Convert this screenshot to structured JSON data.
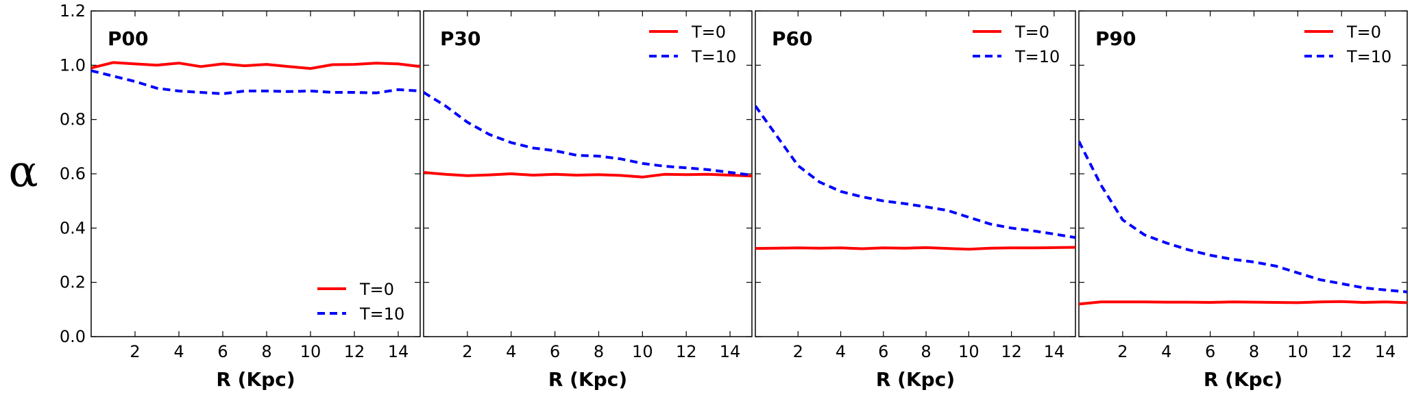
{
  "chart_data": [
    {
      "type": "line",
      "title": "P00",
      "xlabel": "R (Kpc)",
      "ylabel": "α",
      "xlim": [
        0,
        15
      ],
      "ylim": [
        0,
        1.2
      ],
      "xticks": [
        2,
        4,
        6,
        8,
        10,
        12,
        14
      ],
      "yticks": [
        0.0,
        0.2,
        0.4,
        0.6,
        0.8,
        1.0,
        1.2
      ],
      "show_ytick_labels": true,
      "legend_position": "bottom-right",
      "x": [
        0,
        1,
        2,
        3,
        4,
        5,
        6,
        7,
        8,
        9,
        10,
        11,
        12,
        13,
        14,
        15
      ],
      "series": [
        {
          "name": "T=0",
          "color": "#ff0000",
          "style": "solid",
          "values": [
            0.99,
            1.01,
            1.005,
            1.0,
            1.008,
            0.995,
            1.005,
            0.998,
            1.003,
            0.995,
            0.988,
            1.002,
            1.003,
            1.008,
            1.005,
            0.995
          ]
        },
        {
          "name": "T=10",
          "color": "#0000ff",
          "style": "dashed",
          "values": [
            0.98,
            0.96,
            0.94,
            0.915,
            0.905,
            0.9,
            0.895,
            0.905,
            0.905,
            0.903,
            0.905,
            0.9,
            0.9,
            0.898,
            0.91,
            0.905
          ]
        }
      ]
    },
    {
      "type": "line",
      "title": "P30",
      "xlabel": "R (Kpc)",
      "xlim": [
        0,
        15
      ],
      "ylim": [
        0,
        1.2
      ],
      "xticks": [
        2,
        4,
        6,
        8,
        10,
        12,
        14
      ],
      "yticks": [
        0.0,
        0.2,
        0.4,
        0.6,
        0.8,
        1.0,
        1.2
      ],
      "show_ytick_labels": false,
      "legend_position": "top-right",
      "x": [
        0,
        1,
        2,
        3,
        4,
        5,
        6,
        7,
        8,
        9,
        10,
        11,
        12,
        13,
        14,
        15
      ],
      "series": [
        {
          "name": "T=0",
          "color": "#ff0000",
          "style": "solid",
          "values": [
            0.605,
            0.598,
            0.593,
            0.596,
            0.6,
            0.595,
            0.598,
            0.595,
            0.597,
            0.594,
            0.588,
            0.598,
            0.597,
            0.598,
            0.595,
            0.592
          ]
        },
        {
          "name": "T=10",
          "color": "#0000ff",
          "style": "dashed",
          "values": [
            0.9,
            0.85,
            0.79,
            0.745,
            0.715,
            0.695,
            0.685,
            0.668,
            0.665,
            0.655,
            0.638,
            0.628,
            0.622,
            0.615,
            0.605,
            0.595
          ]
        }
      ]
    },
    {
      "type": "line",
      "title": "P60",
      "xlabel": "R (Kpc)",
      "xlim": [
        0,
        15
      ],
      "ylim": [
        0,
        1.2
      ],
      "xticks": [
        2,
        4,
        6,
        8,
        10,
        12,
        14
      ],
      "yticks": [
        0.0,
        0.2,
        0.4,
        0.6,
        0.8,
        1.0,
        1.2
      ],
      "show_ytick_labels": false,
      "legend_position": "top-right",
      "x": [
        0,
        1,
        2,
        3,
        4,
        5,
        6,
        7,
        8,
        9,
        10,
        11,
        12,
        13,
        14,
        15
      ],
      "series": [
        {
          "name": "T=0",
          "color": "#ff0000",
          "style": "solid",
          "values": [
            0.325,
            0.326,
            0.327,
            0.326,
            0.327,
            0.324,
            0.327,
            0.326,
            0.328,
            0.325,
            0.322,
            0.326,
            0.327,
            0.327,
            0.328,
            0.329
          ]
        },
        {
          "name": "T=10",
          "color": "#0000ff",
          "style": "dashed",
          "values": [
            0.85,
            0.74,
            0.63,
            0.57,
            0.535,
            0.515,
            0.5,
            0.49,
            0.478,
            0.465,
            0.44,
            0.415,
            0.4,
            0.39,
            0.378,
            0.365
          ]
        }
      ]
    },
    {
      "type": "line",
      "title": "P90",
      "xlabel": "R (Kpc)",
      "xlim": [
        0,
        15
      ],
      "ylim": [
        0,
        1.2
      ],
      "xticks": [
        2,
        4,
        6,
        8,
        10,
        12,
        14
      ],
      "yticks": [
        0.0,
        0.2,
        0.4,
        0.6,
        0.8,
        1.0,
        1.2
      ],
      "show_ytick_labels": false,
      "legend_position": "top-right",
      "x": [
        0,
        1,
        2,
        3,
        4,
        5,
        6,
        7,
        8,
        9,
        10,
        11,
        12,
        13,
        14,
        15
      ],
      "series": [
        {
          "name": "T=0",
          "color": "#ff0000",
          "style": "solid",
          "values": [
            0.12,
            0.128,
            0.128,
            0.128,
            0.127,
            0.127,
            0.126,
            0.128,
            0.127,
            0.126,
            0.125,
            0.128,
            0.129,
            0.126,
            0.128,
            0.125
          ]
        },
        {
          "name": "T=10",
          "color": "#0000ff",
          "style": "dashed",
          "values": [
            0.72,
            0.56,
            0.43,
            0.375,
            0.345,
            0.32,
            0.3,
            0.285,
            0.275,
            0.26,
            0.235,
            0.21,
            0.195,
            0.18,
            0.172,
            0.165
          ]
        }
      ]
    }
  ]
}
